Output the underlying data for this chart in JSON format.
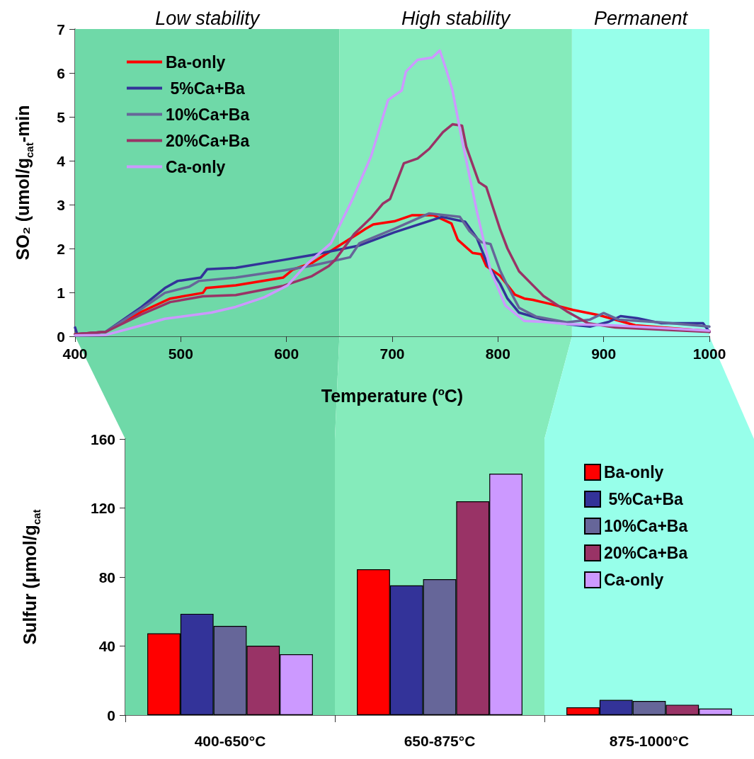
{
  "chart_data": [
    {
      "type": "line",
      "xlabel": "Temperature ($^{o}$C)",
      "ylabel": "SO₂ (umol/g$_{cat}$-min",
      "xlim": [
        400,
        1000
      ],
      "xticks": [
        400,
        500,
        600,
        700,
        800,
        900,
        1000
      ],
      "ylim": [
        0,
        7
      ],
      "yticks": [
        0,
        1,
        2,
        3,
        4,
        5,
        6,
        7
      ],
      "grid": false,
      "legend": "top left",
      "marker": "none",
      "line_style": "solid",
      "bands": [
        {
          "axis": "x",
          "from": 400,
          "to": 650,
          "label": "Low stability",
          "color": "#6fd9a8"
        },
        {
          "axis": "x",
          "from": 650,
          "to": 870,
          "label": "High stability",
          "color": "#85ebbb"
        },
        {
          "axis": "x",
          "from": 870,
          "to": 1000,
          "label": "Permanent",
          "color": "#97ffea"
        }
      ],
      "series": [
        {
          "name": "Ba-only",
          "color": "#ff0000",
          "x": [
            400,
            429,
            463,
            490,
            521,
            524,
            552,
            597,
            606,
            624,
            650,
            675,
            682,
            702,
            719,
            739,
            756,
            762,
            776,
            784,
            789,
            802,
            816,
            825,
            833,
            849,
            871,
            896,
            930,
            1000
          ],
          "values": [
            0.05,
            0.1,
            0.56,
            0.86,
            0.99,
            1.1,
            1.16,
            1.34,
            1.52,
            1.67,
            2.07,
            2.45,
            2.55,
            2.62,
            2.76,
            2.76,
            2.57,
            2.2,
            1.9,
            1.87,
            1.6,
            1.38,
            0.95,
            0.86,
            0.83,
            0.74,
            0.6,
            0.48,
            0.25,
            0.12
          ]
        },
        {
          "name": " 5%Ca+Ba",
          "color": "#333399",
          "x": [
            400,
            402,
            429,
            463,
            485,
            497,
            519,
            525,
            552,
            597,
            624,
            669,
            702,
            747,
            769,
            780,
            791,
            802,
            809,
            820,
            843,
            865,
            887,
            905,
            916,
            932,
            954,
            994,
            1000
          ],
          "values": [
            0.2,
            0.05,
            0.1,
            0.67,
            1.1,
            1.26,
            1.34,
            1.53,
            1.56,
            1.74,
            1.85,
            2.07,
            2.37,
            2.72,
            2.61,
            2.24,
            1.6,
            1.2,
            0.86,
            0.54,
            0.38,
            0.28,
            0.22,
            0.33,
            0.46,
            0.41,
            0.3,
            0.3,
            0.1
          ]
        },
        {
          "name": "10%Ca+Ba",
          "color": "#666699",
          "x": [
            400,
            429,
            463,
            485,
            508,
            517,
            552,
            597,
            624,
            660,
            669,
            702,
            735,
            764,
            773,
            784,
            793,
            802,
            809,
            820,
            836,
            865,
            887,
            900,
            914,
            954,
            1000
          ],
          "values": [
            0.05,
            0.1,
            0.63,
            0.99,
            1.13,
            1.26,
            1.34,
            1.5,
            1.61,
            1.8,
            2.12,
            2.45,
            2.8,
            2.72,
            2.4,
            2.15,
            2.1,
            1.5,
            1.15,
            0.65,
            0.45,
            0.32,
            0.38,
            0.53,
            0.38,
            0.32,
            0.22
          ]
        },
        {
          "name": "20%Ca+Ba",
          "color": "#993366",
          "x": [
            400,
            429,
            463,
            490,
            521,
            552,
            597,
            624,
            640,
            646,
            664,
            680,
            691,
            698,
            711,
            724,
            735,
            748,
            757,
            766,
            770,
            782,
            789,
            802,
            809,
            820,
            843,
            865,
            885,
            911,
            1000
          ],
          "values": [
            0.05,
            0.1,
            0.5,
            0.78,
            0.91,
            0.94,
            1.15,
            1.37,
            1.6,
            1.74,
            2.33,
            2.7,
            3.02,
            3.13,
            3.94,
            4.05,
            4.27,
            4.65,
            4.83,
            4.8,
            4.32,
            3.51,
            3.4,
            2.44,
            2.0,
            1.48,
            0.92,
            0.57,
            0.3,
            0.2,
            0.1
          ]
        },
        {
          "name": "Ca-only",
          "color": "#cc99ff",
          "x": [
            400,
            429,
            463,
            485,
            529,
            552,
            579,
            601,
            619,
            642,
            662,
            680,
            696,
            709,
            713,
            724,
            738,
            745,
            751,
            757,
            766,
            780,
            793,
            807,
            825,
            843,
            865,
            909,
            1000
          ],
          "values": [
            0.02,
            0.03,
            0.25,
            0.4,
            0.54,
            0.67,
            0.89,
            1.16,
            1.64,
            2.12,
            3.1,
            4.1,
            5.38,
            5.6,
            6.03,
            6.3,
            6.35,
            6.51,
            6.08,
            5.6,
            4.47,
            2.85,
            1.5,
            0.7,
            0.35,
            0.33,
            0.28,
            0.25,
            0.13
          ]
        }
      ]
    },
    {
      "type": "bar",
      "categories": [
        "400-650°C",
        "650-875°C",
        "875-1000°C"
      ],
      "bands": [
        {
          "axis": "x",
          "from": "400-650°C",
          "to": "400-650°C",
          "color": "#6fd9a8"
        },
        {
          "axis": "x",
          "from": "650-875°C",
          "to": "650-875°C",
          "color": "#85ebbb"
        },
        {
          "axis": "x",
          "from": "875-1000°C",
          "to": "875-1000°C",
          "color": "#97ffea"
        }
      ],
      "ylabel": "Sulfur (μmol/g$_{cat}$",
      "ylim": [
        0,
        160
      ],
      "yticks": [
        0,
        40,
        80,
        120,
        160
      ],
      "grid": false,
      "legend": "right",
      "series": [
        {
          "name": "Ba-only",
          "color": "#ff0000",
          "values": [
            47.4,
            84.5,
            4.5
          ]
        },
        {
          "name": " 5%Ca+Ba",
          "color": "#333399",
          "values": [
            58.7,
            75.2,
            8.8
          ]
        },
        {
          "name": "10%Ca+Ba",
          "color": "#666699",
          "values": [
            51.7,
            78.8,
            8.2
          ]
        },
        {
          "name": "20%Ca+Ba",
          "color": "#993366",
          "values": [
            40.2,
            123.9,
            6
          ]
        },
        {
          "name": "Ca-only",
          "color": "#cc99ff",
          "values": [
            35.3,
            139.9,
            3.8
          ]
        }
      ]
    }
  ]
}
